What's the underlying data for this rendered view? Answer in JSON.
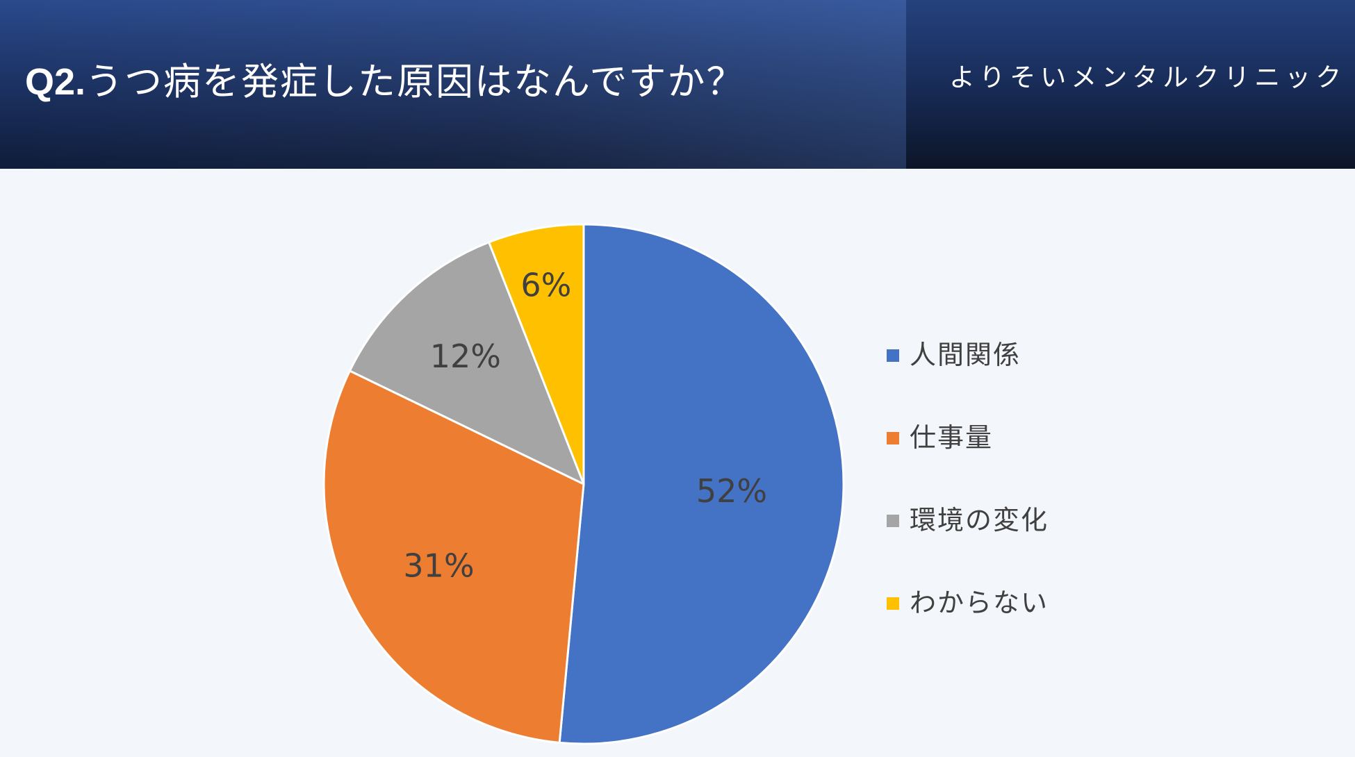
{
  "header": {
    "question_number": "Q2.",
    "question_text": "うつ病を発症した原因はなんですか？",
    "clinic_name": "よりそいメンタルクリニック"
  },
  "colors": {
    "header_dark": "#0f1c3a",
    "header_mid": "#1d3466",
    "background": "#f3f6fa",
    "label_text": "#404040"
  },
  "chart_data": {
    "type": "pie",
    "categories": [
      "人間関係",
      "仕事量",
      "環境の変化",
      "わからない"
    ],
    "values": [
      52,
      31,
      12,
      6
    ],
    "data_labels": [
      "52%",
      "31%",
      "12%",
      "6%"
    ],
    "colors": [
      "#4472c4",
      "#ed7d31",
      "#a5a5a5",
      "#ffc000"
    ],
    "start_angle": "12 o'clock",
    "direction": "clockwise",
    "legend_position": "right"
  }
}
